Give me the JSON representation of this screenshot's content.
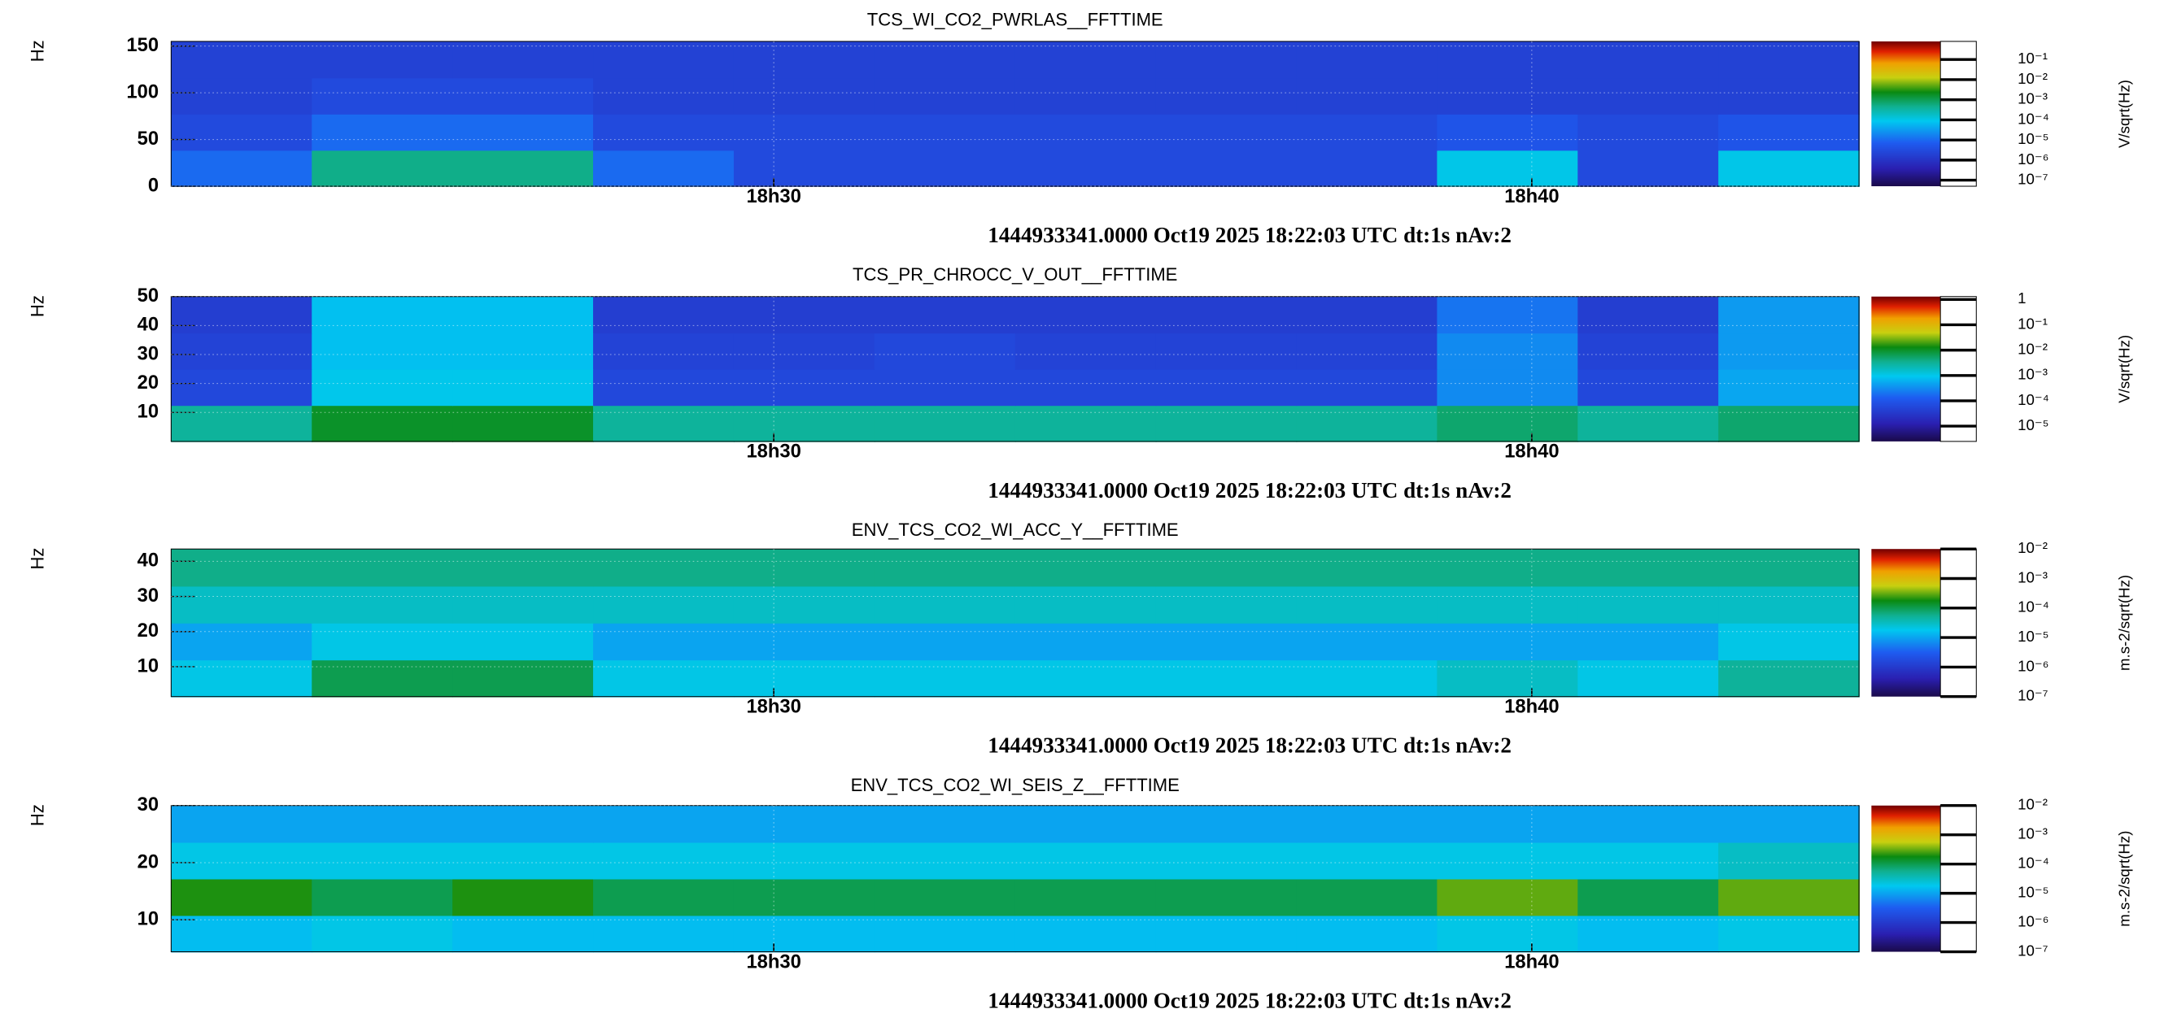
{
  "chart_data": [
    {
      "type": "spectrogram",
      "title": "TCS_WI_CO2_PWRLAS__FFTTIME",
      "ylabel": "Hz",
      "xlabel": "1444933341.0000 Oct19 2025 18:22:03 UTC dt:1s nAv:2",
      "xlim": [
        0,
        1336
      ],
      "xticks": [
        {
          "value": 477,
          "label": "18h30"
        },
        {
          "value": 1077,
          "label": "18h40"
        }
      ],
      "ylim": [
        0,
        155
      ],
      "yticks": [
        0,
        50,
        100,
        150
      ],
      "grid": true,
      "z": [
        [
          1e-05,
          0.0005,
          0.0005,
          1e-05,
          3e-06,
          3e-06,
          3e-06,
          3e-06,
          3e-06,
          0.0001,
          3e-06,
          0.0001
        ],
        [
          3e-06,
          1e-05,
          1e-05,
          3e-06,
          3e-06,
          3e-06,
          3e-06,
          3e-06,
          3e-06,
          5e-06,
          3e-06,
          5e-06
        ],
        [
          2e-06,
          3e-06,
          3e-06,
          2e-06,
          2e-06,
          2e-06,
          2e-06,
          2e-06,
          2e-06,
          2e-06,
          2e-06,
          2e-06
        ],
        [
          2e-06,
          2e-06,
          2e-06,
          2e-06,
          2e-06,
          2e-06,
          2e-06,
          2e-06,
          2e-06,
          2e-06,
          2e-06,
          2e-06
        ]
      ],
      "zscale": "log",
      "zlim": [
        5e-08,
        0.8
      ],
      "zlabel": "V/sqrt(Hz)",
      "zticks": [
        {
          "value": 0.1,
          "label": "10⁻¹"
        },
        {
          "value": 0.01,
          "label": "10⁻²"
        },
        {
          "value": 0.001,
          "label": "10⁻³"
        },
        {
          "value": 0.0001,
          "label": "10⁻⁴"
        },
        {
          "value": 1e-05,
          "label": "10⁻⁵"
        },
        {
          "value": 1e-06,
          "label": "10⁻⁶"
        },
        {
          "value": 1e-07,
          "label": "10⁻⁷"
        }
      ]
    },
    {
      "type": "spectrogram",
      "title": "TCS_PR_CHROCC_V_OUT__FFTTIME",
      "ylabel": "Hz",
      "xlabel": "1444933341.0000 Oct19 2025 18:22:03 UTC dt:1s nAv:2",
      "xlim": [
        0,
        1336
      ],
      "xticks": [
        {
          "value": 477,
          "label": "18h30"
        },
        {
          "value": 1077,
          "label": "18h40"
        }
      ],
      "ylim": [
        0,
        50
      ],
      "yticks": [
        10,
        20,
        30,
        40,
        50
      ],
      "grid": true,
      "z": [
        [
          0.003,
          0.01,
          0.01,
          0.003,
          0.003,
          0.003,
          0.003,
          0.003,
          0.003,
          0.005,
          0.003,
          0.005
        ],
        [
          6e-05,
          0.001,
          0.001,
          6e-05,
          6e-05,
          6e-05,
          6e-05,
          6e-05,
          6e-05,
          0.0003,
          6e-05,
          0.0005
        ],
        [
          5e-05,
          0.0008,
          0.0008,
          5e-05,
          5e-05,
          6e-05,
          5e-05,
          5e-05,
          5e-05,
          0.0003,
          5e-05,
          0.0004
        ],
        [
          4e-05,
          0.0008,
          0.0008,
          4e-05,
          4e-05,
          4e-05,
          4e-05,
          4e-05,
          4e-05,
          0.0002,
          4e-05,
          0.0004
        ]
      ],
      "zscale": "log",
      "zlim": [
        2.5e-06,
        1.3
      ],
      "zlabel": "V/sqrt(Hz)",
      "zticks": [
        1,
        {
          "value": 0.1,
          "label": "10⁻¹"
        },
        {
          "value": 0.01,
          "label": "10⁻²"
        },
        {
          "value": 0.001,
          "label": "10⁻³"
        },
        {
          "value": 0.0001,
          "label": "10⁻⁴"
        },
        {
          "value": 1e-05,
          "label": "10⁻⁵"
        }
      ]
    },
    {
      "type": "spectrogram",
      "title": "ENV_TCS_CO2_WI_ACC_Y__FFTTIME",
      "ylabel": "Hz",
      "xlabel": "1444933341.0000 Oct19 2025 18:22:03 UTC dt:1s nAv:2",
      "xlim": [
        0,
        1336
      ],
      "xticks": [
        {
          "value": 477,
          "label": "18h30"
        },
        {
          "value": 1077,
          "label": "18h40"
        }
      ],
      "ylim": [
        1.5,
        43.5
      ],
      "yticks": [
        10,
        20,
        30,
        40
      ],
      "grid": true,
      "z": [
        [
          2e-05,
          0.0001,
          0.0001,
          2e-05,
          2e-05,
          2e-05,
          2e-05,
          2e-05,
          2e-05,
          3e-05,
          2e-05,
          5e-05
        ],
        [
          1e-05,
          2e-05,
          2e-05,
          1e-05,
          1e-05,
          1e-05,
          1e-05,
          1e-05,
          1e-05,
          1e-05,
          1e-05,
          2e-05
        ],
        [
          3e-05,
          3e-05,
          3e-05,
          3e-05,
          3e-05,
          3e-05,
          3e-05,
          3e-05,
          3e-05,
          3e-05,
          3e-05,
          3e-05
        ],
        [
          6e-05,
          6e-05,
          6e-05,
          6e-05,
          6e-05,
          6e-05,
          6e-05,
          6e-05,
          6e-05,
          6e-05,
          6e-05,
          6e-05
        ]
      ],
      "zscale": "log",
      "zlim": [
        1e-07,
        0.01
      ],
      "zlabel": "m.s-2/sqrt(Hz)",
      "zticks": [
        {
          "value": 0.01,
          "label": "10⁻²"
        },
        {
          "value": 0.001,
          "label": "10⁻³"
        },
        {
          "value": 0.0001,
          "label": "10⁻⁴"
        },
        {
          "value": 1e-05,
          "label": "10⁻⁵"
        },
        {
          "value": 1e-06,
          "label": "10⁻⁶"
        },
        {
          "value": 1e-07,
          "label": "10⁻⁷"
        }
      ]
    },
    {
      "type": "spectrogram",
      "title": "ENV_TCS_CO2_WI_SEIS_Z__FFTTIME",
      "ylabel": "Hz",
      "xlabel": "1444933341.0000 Oct19 2025 18:22:03 UTC dt:1s nAv:2",
      "xlim": [
        0,
        1336
      ],
      "xticks": [
        {
          "value": 477,
          "label": "18h30"
        },
        {
          "value": 1077,
          "label": "18h40"
        }
      ],
      "ylim": [
        4.4,
        30
      ],
      "yticks": [
        10,
        20,
        30
      ],
      "grid": true,
      "z": [
        [
          1.5e-05,
          2e-05,
          1.5e-05,
          1.5e-05,
          1.5e-05,
          1.5e-05,
          1.5e-05,
          1.5e-05,
          1.5e-05,
          2e-05,
          1.5e-05,
          2e-05
        ],
        [
          0.0002,
          0.0001,
          0.0002,
          0.0001,
          0.0001,
          0.0001,
          0.0001,
          0.0001,
          0.0001,
          0.0003,
          0.0001,
          0.0003
        ],
        [
          2e-05,
          2e-05,
          2e-05,
          2e-05,
          2e-05,
          2e-05,
          2e-05,
          2e-05,
          2e-05,
          2e-05,
          2e-05,
          3e-05
        ],
        [
          1e-05,
          1e-05,
          1e-05,
          1e-05,
          1e-05,
          1e-05,
          1e-05,
          1e-05,
          1e-05,
          1e-05,
          1e-05,
          1e-05
        ]
      ],
      "zscale": "log",
      "zlim": [
        1e-07,
        0.01
      ],
      "zlabel": "m.s-2/sqrt(Hz)",
      "zticks": [
        {
          "value": 0.01,
          "label": "10⁻²"
        },
        {
          "value": 0.001,
          "label": "10⁻³"
        },
        {
          "value": 0.0001,
          "label": "10⁻⁴"
        },
        {
          "value": 1e-05,
          "label": "10⁻⁵"
        },
        {
          "value": 1e-06,
          "label": "10⁻⁶"
        },
        {
          "value": 1e-07,
          "label": "10⁻⁷"
        }
      ]
    }
  ]
}
